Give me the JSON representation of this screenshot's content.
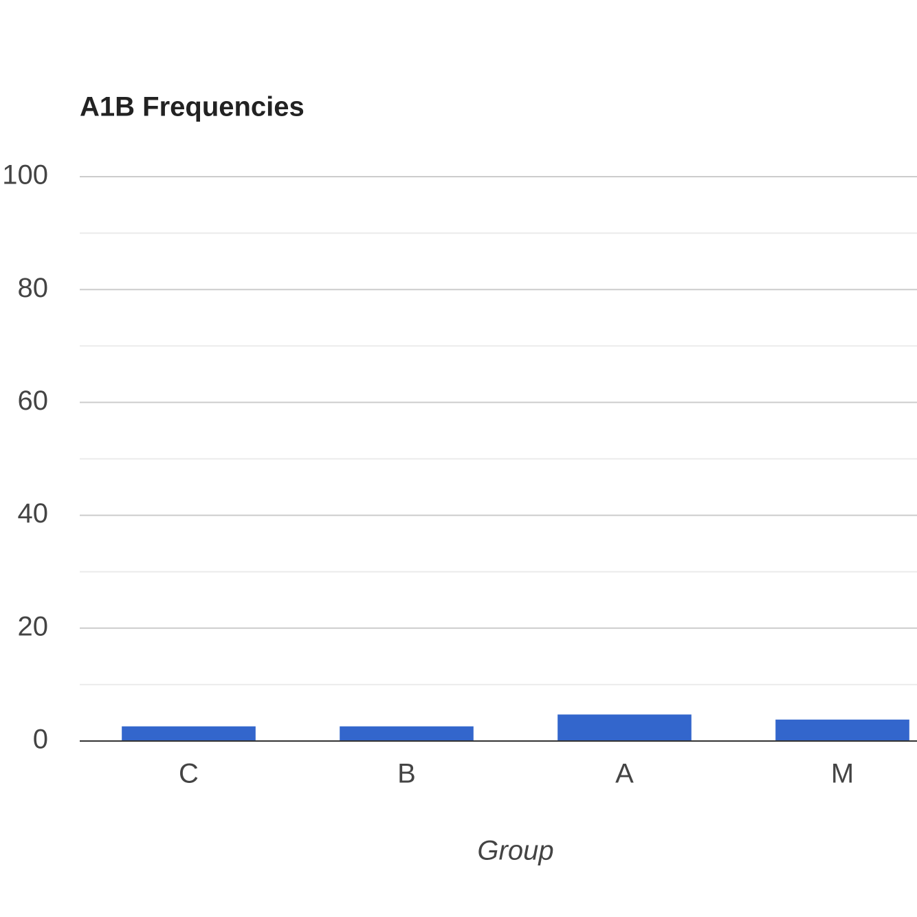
{
  "chart_data": {
    "type": "bar",
    "title": "A1B Frequencies",
    "x_label": "Group",
    "categories": [
      "C",
      "B",
      "A",
      "M"
    ],
    "values": [
      2.6,
      2.6,
      4.7,
      3.8
    ],
    "color": "#3366cc",
    "ylim": [
      0,
      100
    ],
    "yticks": [
      0,
      20,
      40,
      60,
      80,
      100
    ],
    "minor_yticks": [
      10,
      30,
      50,
      70,
      90
    ],
    "grid": true
  }
}
